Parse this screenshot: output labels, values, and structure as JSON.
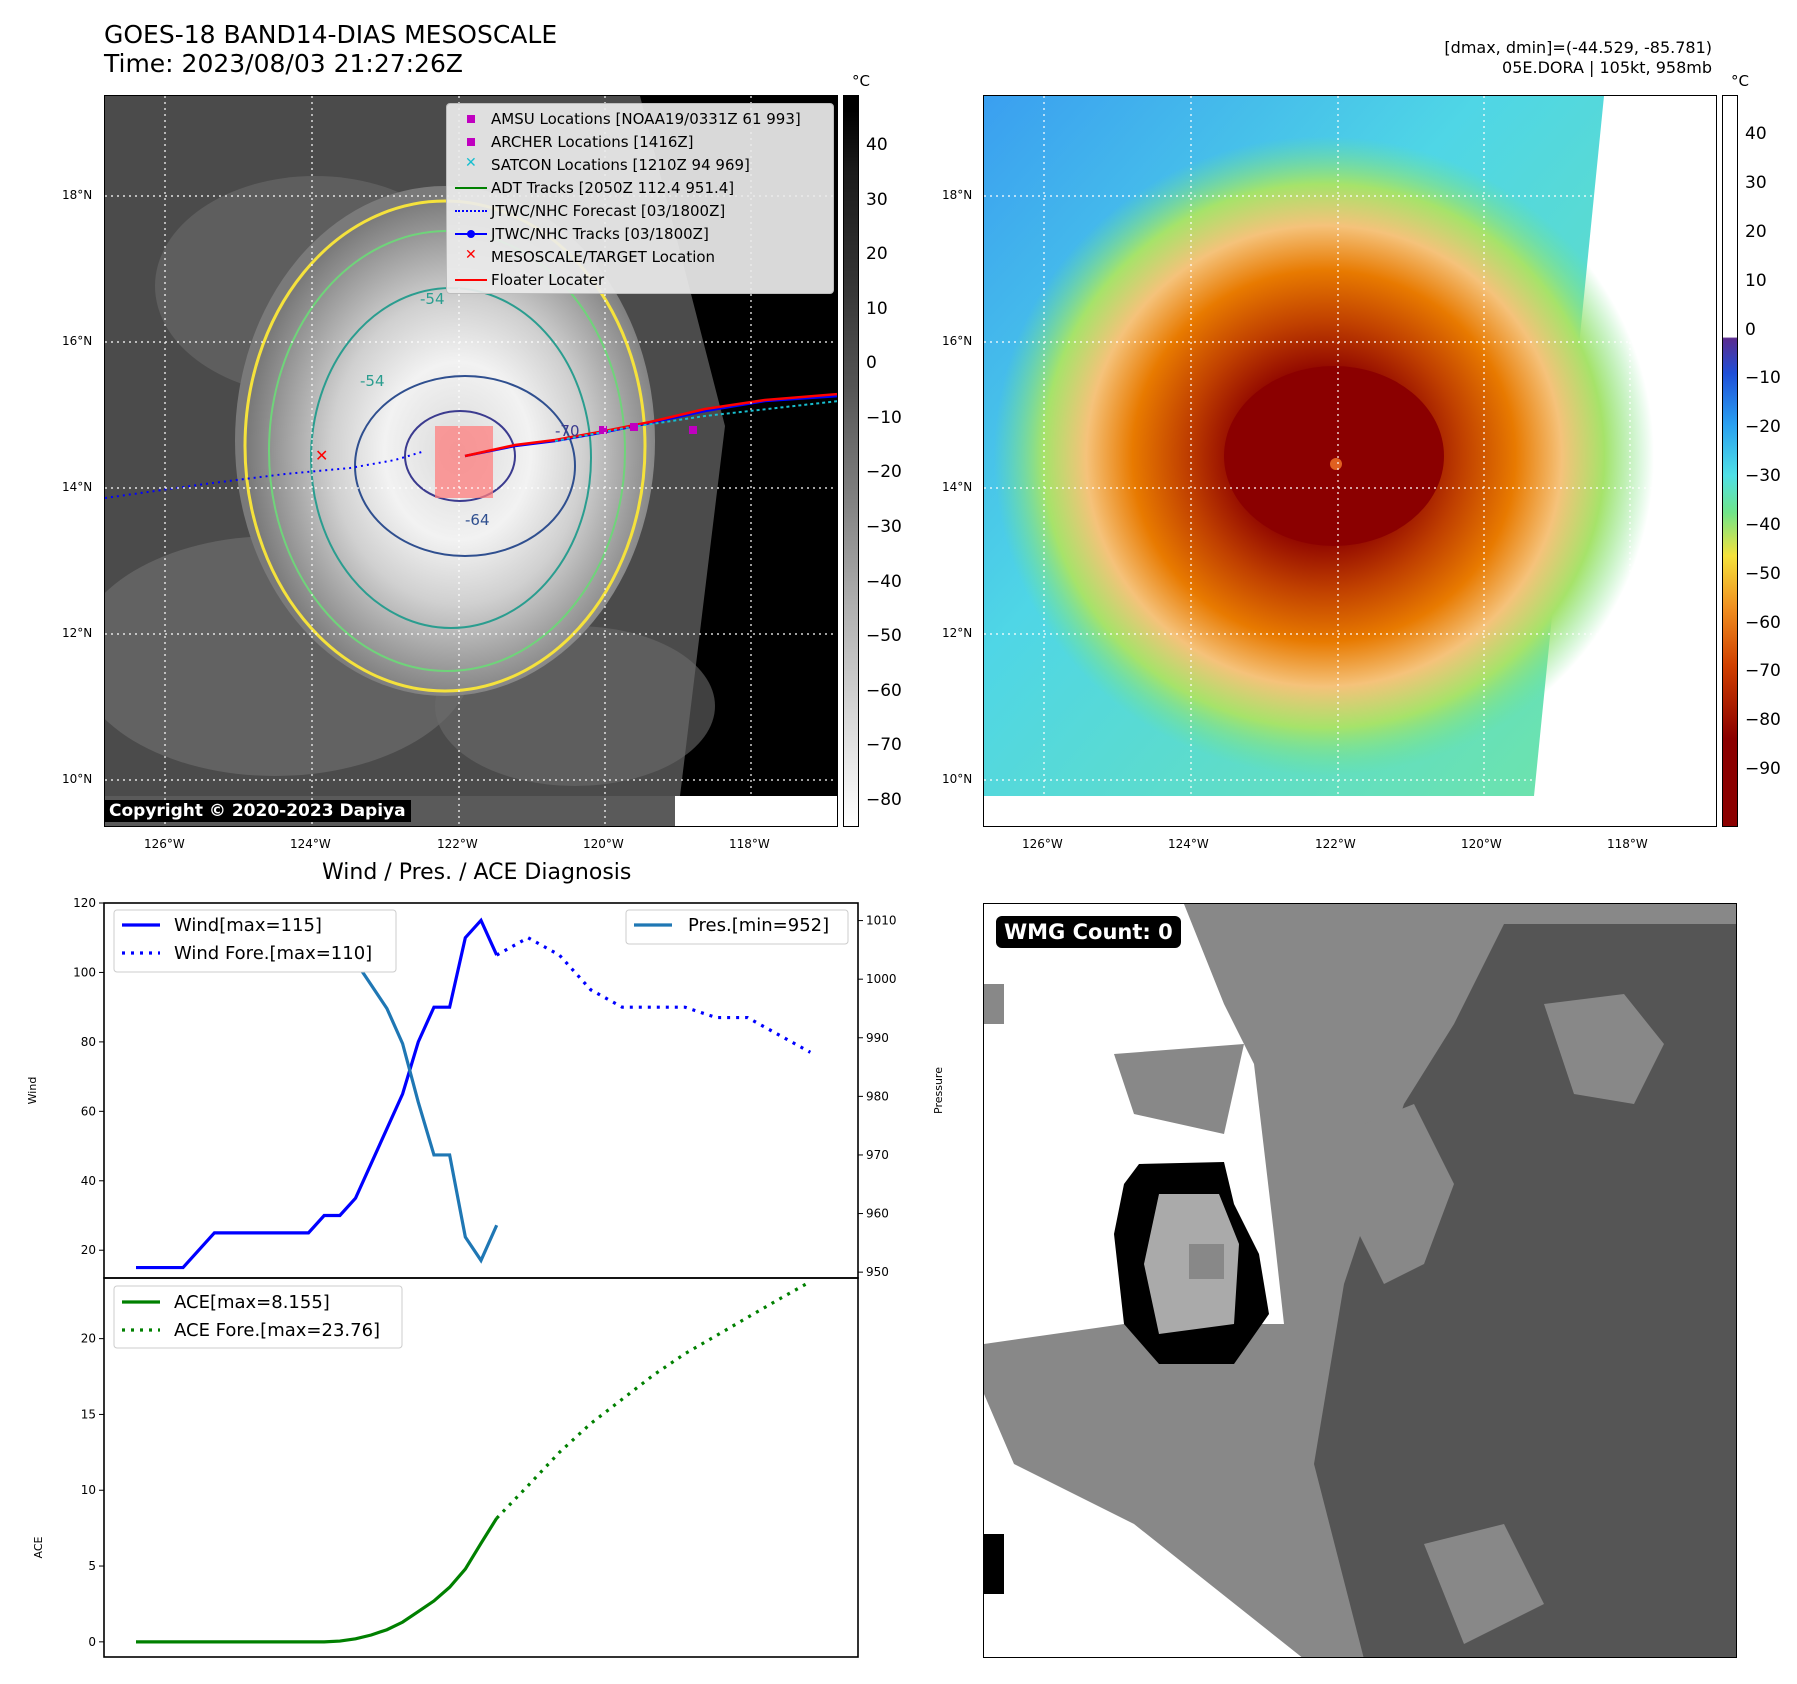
{
  "header": {
    "title_line1": "GOES-18 BAND14-DIAS MESOSCALE",
    "title_line2": "Time: 2023/08/03 21:27:26Z",
    "dmax_dmin": "[dmax, dmin]=(-44.529, -85.781)",
    "storm_info": "05E.DORA | 105kt, 958mb"
  },
  "map_axes": {
    "lat_labels": [
      "18°N",
      "16°N",
      "14°N",
      "12°N",
      "10°N"
    ],
    "lon_labels_left": [
      "126°W",
      "124°W",
      "122°W",
      "120°W",
      "118°W"
    ],
    "lon_labels_right": [
      "126°W",
      "124°W",
      "122°W",
      "120°W",
      "118°W"
    ]
  },
  "left_panel": {
    "legend": [
      {
        "label": "AMSU Locations [NOAA19/0331Z 61 993]",
        "symbol": "square",
        "color": "#c000c0"
      },
      {
        "label": "ARCHER Locations [1416Z]",
        "symbol": "square",
        "color": "#c000c0"
      },
      {
        "label": "SATCON Locations [1210Z 94 969]",
        "symbol": "x",
        "color": "#17becf"
      },
      {
        "label": "ADT Tracks [2050Z 112.4 951.4]",
        "symbol": "line",
        "color": "#008000"
      },
      {
        "label": "JTWC/NHC Forecast [03/1800Z]",
        "symbol": "dotted",
        "color": "#0000ff"
      },
      {
        "label": "JTWC/NHC Tracks [03/1800Z]",
        "symbol": "line-dot",
        "color": "#0000ff"
      },
      {
        "label": "MESOSCALE/TARGET Location",
        "symbol": "x",
        "color": "#ff0000"
      },
      {
        "label": "Floater Locater",
        "symbol": "line",
        "color": "#ff0000"
      }
    ],
    "contour_labels": [
      "-54",
      "-54",
      "-64",
      "-70"
    ],
    "copyright": "Copyright © 2020-2023 Dapiya",
    "colorbar_unit": "°C",
    "colorbar_ticks": [
      "40",
      "30",
      "20",
      "10",
      "0",
      "−10",
      "−20",
      "−30",
      "−40",
      "−50",
      "−60",
      "−70",
      "−80"
    ]
  },
  "right_panel": {
    "colorbar_unit": "°C",
    "colorbar_ticks": [
      "40",
      "30",
      "20",
      "10",
      "0",
      "−10",
      "−20",
      "−30",
      "−40",
      "−50",
      "−60",
      "−70",
      "−80",
      "−90"
    ]
  },
  "wmg_panel": {
    "badge": "WMG Count: 0"
  },
  "chart_data": {
    "type": "line",
    "title": "Wind / Pres. / ACE Diagnosis",
    "top": {
      "ylabel": "Wind",
      "ylabel_right": "Pressure",
      "ylim": [
        12,
        120
      ],
      "yticks": [
        20,
        40,
        60,
        80,
        100,
        120
      ],
      "ylim_right": [
        949,
        1013
      ],
      "yticks_right": [
        950,
        960,
        970,
        980,
        990,
        1000,
        1010
      ],
      "xlim": [
        0,
        44
      ],
      "series": [
        {
          "name": "Wind[max=115]",
          "color": "#0000ff",
          "style": "solid",
          "axis": "left",
          "x": [
            0,
            1,
            2,
            3,
            4,
            5,
            6,
            7,
            8,
            9,
            10,
            11,
            12,
            13,
            14,
            15,
            16,
            17,
            18,
            19,
            20,
            21,
            22,
            23
          ],
          "y": [
            15,
            15,
            15,
            15,
            20,
            25,
            25,
            25,
            25,
            25,
            25,
            25,
            30,
            30,
            35,
            45,
            55,
            65,
            80,
            90,
            90,
            110,
            115,
            105
          ]
        },
        {
          "name": "Wind Fore.[max=110]",
          "color": "#0000ff",
          "style": "dotted",
          "axis": "left",
          "x": [
            23,
            25,
            27,
            29,
            31,
            33,
            35,
            37,
            39,
            41,
            43
          ],
          "y": [
            105,
            110,
            105,
            95,
            90,
            90,
            90,
            87,
            87,
            82,
            77
          ]
        },
        {
          "name": "Pres.[min=952]",
          "color": "#1f77b4",
          "style": "solid",
          "axis": "right",
          "x": [
            0,
            1,
            2,
            3,
            4,
            5,
            6,
            7,
            8,
            9,
            10,
            11,
            12,
            13,
            14,
            15,
            16,
            17,
            18,
            19,
            20,
            21,
            22,
            23
          ],
          "y": [
            1010,
            1010,
            1010,
            1010,
            1008,
            1007,
            1007,
            1007,
            1007,
            1007,
            1007,
            1007,
            1007,
            1006,
            1003,
            999,
            995,
            989,
            979,
            970,
            970,
            956,
            952,
            958
          ]
        }
      ]
    },
    "bottom": {
      "ylabel": "ACE",
      "ylim": [
        -1,
        24
      ],
      "yticks": [
        0,
        5,
        10,
        15,
        20
      ],
      "xlim": [
        0,
        44
      ],
      "series": [
        {
          "name": "ACE[max=8.155]",
          "color": "#008000",
          "style": "solid",
          "x": [
            0,
            2,
            4,
            6,
            8,
            10,
            12,
            13,
            14,
            15,
            16,
            17,
            18,
            19,
            20,
            21,
            22,
            23
          ],
          "y": [
            0,
            0,
            0,
            0,
            0,
            0,
            0,
            0.05,
            0.2,
            0.45,
            0.8,
            1.3,
            2.0,
            2.7,
            3.6,
            4.8,
            6.5,
            8.155
          ]
        },
        {
          "name": "ACE Fore.[max=23.76]",
          "color": "#008000",
          "style": "dotted",
          "x": [
            23,
            25,
            27,
            29,
            31,
            33,
            35,
            37,
            39,
            41,
            43
          ],
          "y": [
            8.155,
            10.3,
            12.5,
            14.4,
            16.0,
            17.6,
            19.0,
            20.2,
            21.4,
            22.6,
            23.76
          ]
        }
      ]
    }
  }
}
